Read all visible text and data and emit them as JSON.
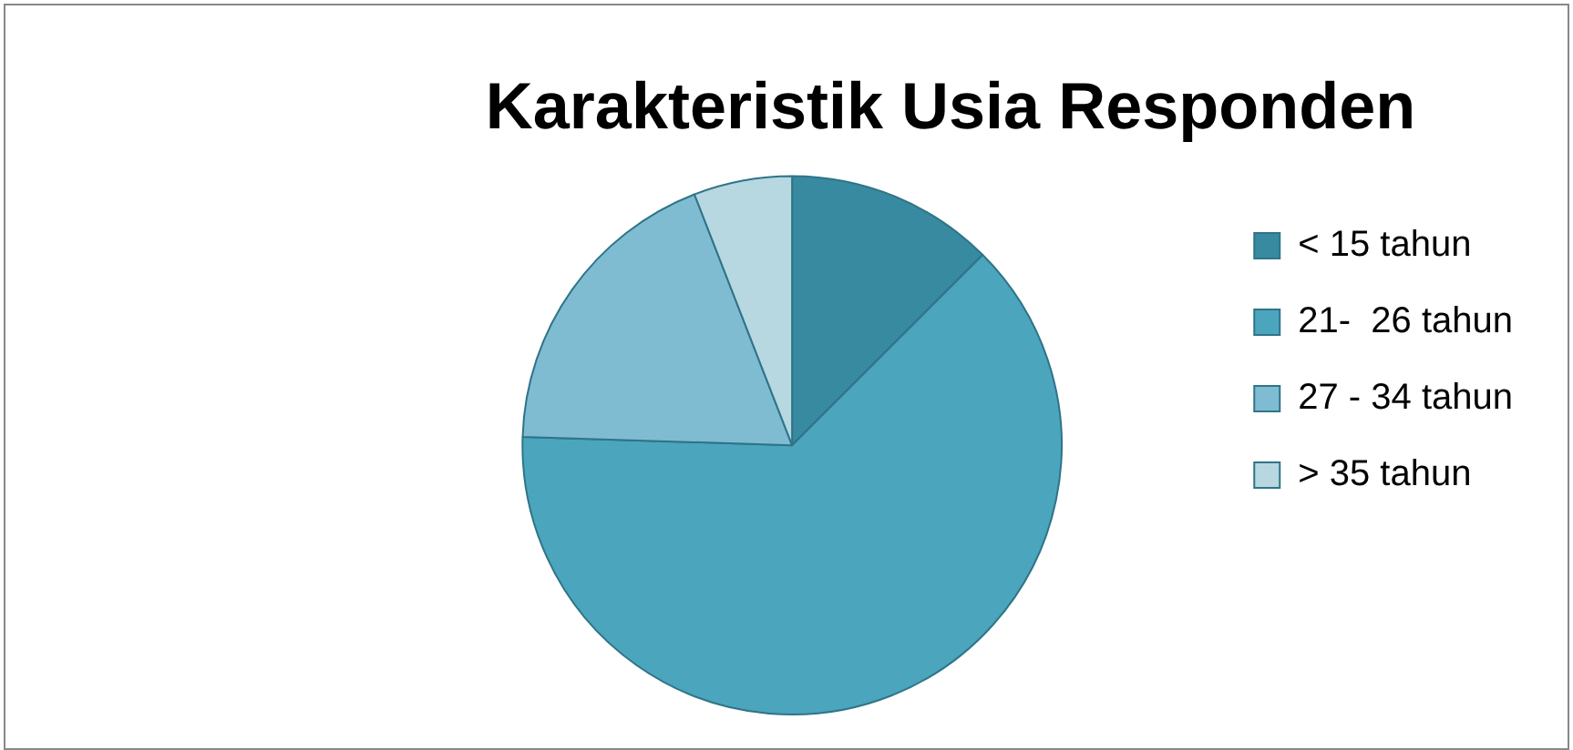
{
  "chart_data": {
    "type": "pie",
    "title": "Karakteristik Usia Responden",
    "categories": [
      "< 15 tahun",
      "21-  26 tahun",
      "27 - 34 tahun",
      "> 35 tahun"
    ],
    "values": [
      12.5,
      63,
      18.6,
      5.9
    ],
    "colors": [
      "#378aa0",
      "#4ba5bd",
      "#7fbcd2",
      "#b7d7e1"
    ],
    "legend": "right"
  }
}
